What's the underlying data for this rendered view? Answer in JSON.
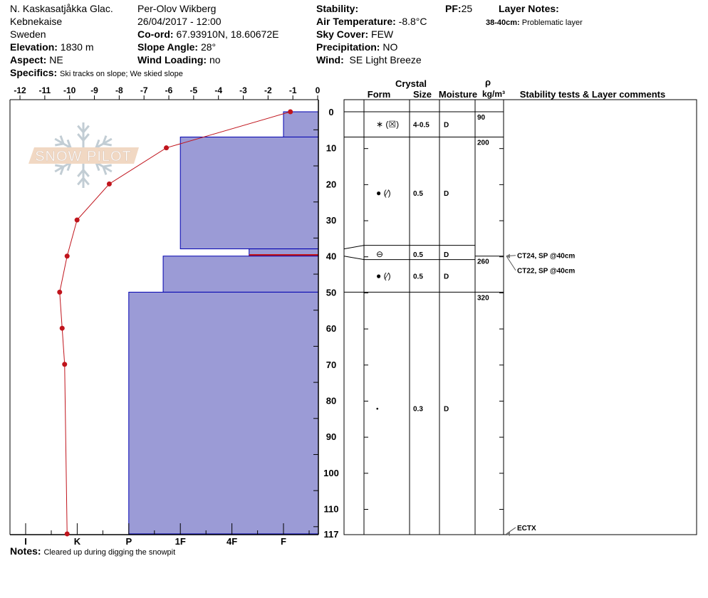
{
  "header": {
    "location": "N. Kaskasatjåkka Glac.",
    "range": "Kebnekaise",
    "country": "Sweden",
    "elevation_label": "Elevation:",
    "elevation": "1830 m",
    "aspect_label": "Aspect:",
    "aspect": "NE",
    "specifics_label": "Specifics:",
    "specifics": "Ski tracks on slope; We skied slope",
    "observer": "Per-Olov Wikberg",
    "datetime": "26/04/2017 - 12:00",
    "coord_label": "Co-ord:",
    "coord": "67.93910N, 18.60672E",
    "slope_label": "Slope Angle:",
    "slope": "28°",
    "windload_label": "Wind Loading:",
    "windload": "no",
    "stability_label": "Stability:",
    "stability": "",
    "airtemp_label": "Air Temperature:",
    "airtemp": "-8.8°C",
    "sky_label": "Sky Cover:",
    "sky": "FEW",
    "precip_label": "Precipitation:",
    "precip": "NO",
    "wind_label": "Wind:",
    "wind": "SE Light Breeze",
    "pf_label": "PF:",
    "pf": "25",
    "layer_notes_label": "Layer Notes:",
    "layer_note_depth": "38-40cm:",
    "layer_note": "Problematic layer"
  },
  "notes_label": "Notes:",
  "notes": "Cleared up during digging the snowpit",
  "table_headers": {
    "crystal": "Crystal",
    "form": "Form",
    "size": "Size",
    "moisture": "Moisture",
    "rho": "ρ",
    "density_unit": "kg/m³",
    "comments": "Stability tests & Layer comments"
  },
  "colors": {
    "hardness_fill": "#9b9bd6",
    "hardness_stroke": "#0000b0",
    "temperature": "#c0141c",
    "problem_layer": "#c0141c",
    "logo_band": "#f0d4bd",
    "logo_flake": "#bcc8d0"
  },
  "logo_text": "SNOW PILOT",
  "chart_data": {
    "type": "snow-profile",
    "temperature_axis": {
      "ticks": [
        "-12",
        "-11",
        "-10",
        "-9",
        "-8",
        "-7",
        "-6",
        "-5",
        "-4",
        "-3",
        "-2",
        "-1",
        "0"
      ],
      "range": [
        -12,
        0
      ],
      "unit": "°C"
    },
    "depth_axis": {
      "ticks": [
        "0",
        "10",
        "20",
        "30",
        "40",
        "50",
        "60",
        "70",
        "80",
        "90",
        "100",
        "110",
        "117"
      ],
      "range": [
        0,
        117
      ],
      "unit": "cm"
    },
    "hardness_axis": {
      "ticks": [
        "I",
        "K",
        "P",
        "1F",
        "4F",
        "F"
      ]
    },
    "hardness_layers": [
      {
        "top": 0,
        "bottom": 7,
        "hardness": "F"
      },
      {
        "top": 7,
        "bottom": 38,
        "hardness": "1F"
      },
      {
        "top": 38,
        "bottom": 40,
        "hardness": "4F+",
        "problematic": true
      },
      {
        "top": 40,
        "bottom": 50,
        "hardness": "1F-"
      },
      {
        "top": 50,
        "bottom": 117,
        "hardness": "P"
      }
    ],
    "temperature_profile": [
      {
        "depth": 0,
        "temp": -1.1
      },
      {
        "depth": 10,
        "temp": -6.1
      },
      {
        "depth": 20,
        "temp": -8.4
      },
      {
        "depth": 30,
        "temp": -9.7
      },
      {
        "depth": 40,
        "temp": -10.1
      },
      {
        "depth": 50,
        "temp": -10.4
      },
      {
        "depth": 60,
        "temp": -10.3
      },
      {
        "depth": 70,
        "temp": -10.2
      },
      {
        "depth": 117,
        "temp": -10.1
      }
    ],
    "crystal_layers": [
      {
        "top": 0,
        "bottom": 7,
        "form": "∗ (☒)",
        "size": "4-0.5",
        "moisture": "D"
      },
      {
        "top": 7,
        "bottom": 38,
        "form": "● (∕)",
        "size": "0.5",
        "moisture": "D"
      },
      {
        "top": 38,
        "bottom": 40,
        "form": "⊖",
        "size": "0.5",
        "moisture": "D"
      },
      {
        "top": 40,
        "bottom": 50,
        "form": "● (∕)",
        "size": "0.5",
        "moisture": "D"
      },
      {
        "top": 50,
        "bottom": 117,
        "form": "•",
        "size": "0.3",
        "moisture": "D"
      }
    ],
    "density": [
      {
        "top": 0,
        "bottom": 7,
        "value": "90"
      },
      {
        "top": 7,
        "bottom": 40,
        "value": "200"
      },
      {
        "top": 40,
        "bottom": 50,
        "value": "260"
      },
      {
        "top": 50,
        "bottom": 117,
        "value": "320"
      }
    ],
    "stability_tests": [
      {
        "depth": 40,
        "text": "CT24, SP @40cm"
      },
      {
        "depth": 40,
        "text": "CT22, SP @40cm"
      },
      {
        "depth": 117,
        "text": "ECTX"
      }
    ]
  }
}
